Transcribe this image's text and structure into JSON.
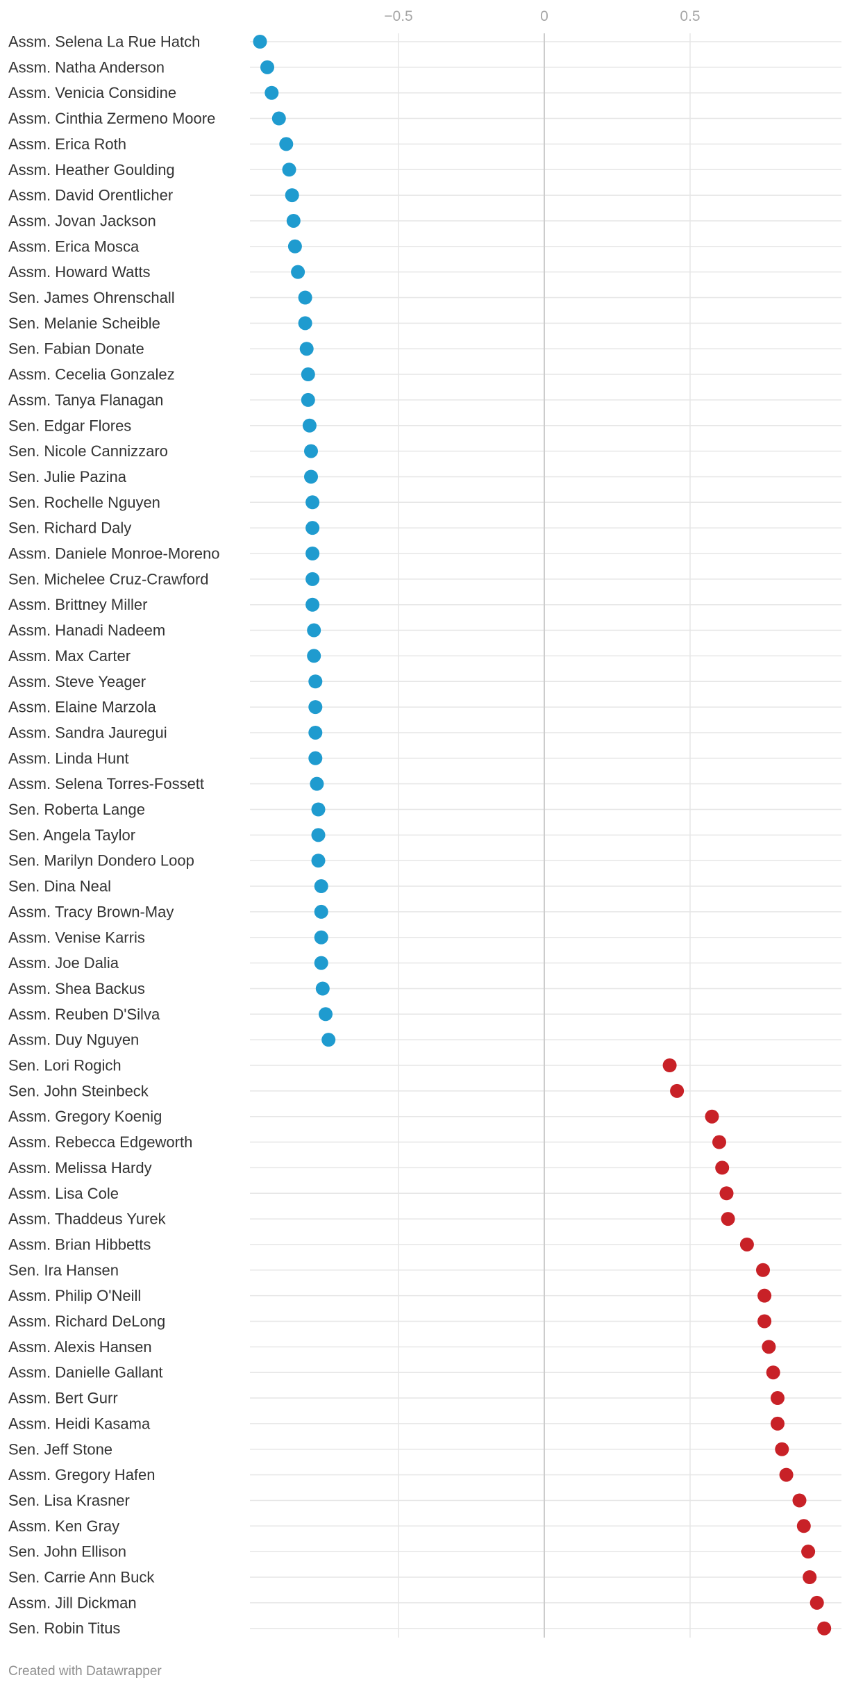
{
  "chart_data": {
    "type": "scatter",
    "title": "",
    "xlabel": "",
    "ylabel": "",
    "xlim": [
      -1.0,
      1.0
    ],
    "x_ticks": [
      {
        "value": -0.5,
        "label": "−0.5"
      },
      {
        "value": 0,
        "label": "0"
      },
      {
        "value": 0.5,
        "label": "0.5"
      }
    ],
    "grid": true,
    "legend": "none",
    "colors": {
      "democrat": "#1f9bcf",
      "republican": "#c82127",
      "gridline": "#e6e6e6",
      "zeroline": "#cccccc"
    },
    "legislators": [
      {
        "name": "Assm. Selena La Rue Hatch",
        "score": -0.975,
        "party": "democrat"
      },
      {
        "name": "Assm. Natha Anderson",
        "score": -0.95,
        "party": "democrat"
      },
      {
        "name": "Assm. Venicia Considine",
        "score": -0.935,
        "party": "democrat"
      },
      {
        "name": "Assm. Cinthia Zermeno Moore",
        "score": -0.91,
        "party": "democrat"
      },
      {
        "name": "Assm. Erica Roth",
        "score": -0.885,
        "party": "democrat"
      },
      {
        "name": "Assm. Heather Goulding",
        "score": -0.875,
        "party": "democrat"
      },
      {
        "name": "Assm. David Orentlicher",
        "score": -0.865,
        "party": "democrat"
      },
      {
        "name": "Assm. Jovan Jackson",
        "score": -0.86,
        "party": "democrat"
      },
      {
        "name": "Assm. Erica Mosca",
        "score": -0.855,
        "party": "democrat"
      },
      {
        "name": "Assm. Howard Watts",
        "score": -0.845,
        "party": "democrat"
      },
      {
        "name": "Sen. James Ohrenschall",
        "score": -0.82,
        "party": "democrat"
      },
      {
        "name": "Sen. Melanie Scheible",
        "score": -0.82,
        "party": "democrat"
      },
      {
        "name": "Sen. Fabian Donate",
        "score": -0.815,
        "party": "democrat"
      },
      {
        "name": "Assm. Cecelia Gonzalez",
        "score": -0.81,
        "party": "democrat"
      },
      {
        "name": "Assm. Tanya Flanagan",
        "score": -0.81,
        "party": "democrat"
      },
      {
        "name": "Sen. Edgar Flores",
        "score": -0.805,
        "party": "democrat"
      },
      {
        "name": "Sen. Nicole Cannizzaro",
        "score": -0.8,
        "party": "democrat"
      },
      {
        "name": "Sen. Julie Pazina",
        "score": -0.8,
        "party": "democrat"
      },
      {
        "name": "Sen. Rochelle Nguyen",
        "score": -0.795,
        "party": "democrat"
      },
      {
        "name": "Sen. Richard Daly",
        "score": -0.795,
        "party": "democrat"
      },
      {
        "name": "Assm. Daniele Monroe-Moreno",
        "score": -0.795,
        "party": "democrat"
      },
      {
        "name": "Sen. Michelee Cruz-Crawford",
        "score": -0.795,
        "party": "democrat"
      },
      {
        "name": "Assm. Brittney Miller",
        "score": -0.795,
        "party": "democrat"
      },
      {
        "name": "Assm. Hanadi Nadeem",
        "score": -0.79,
        "party": "democrat"
      },
      {
        "name": "Assm. Max Carter",
        "score": -0.79,
        "party": "democrat"
      },
      {
        "name": "Assm. Steve Yeager",
        "score": -0.785,
        "party": "democrat"
      },
      {
        "name": "Assm. Elaine Marzola",
        "score": -0.785,
        "party": "democrat"
      },
      {
        "name": "Assm. Sandra Jauregui",
        "score": -0.785,
        "party": "democrat"
      },
      {
        "name": "Assm. Linda Hunt",
        "score": -0.785,
        "party": "democrat"
      },
      {
        "name": "Assm. Selena Torres-Fossett",
        "score": -0.78,
        "party": "democrat"
      },
      {
        "name": "Sen. Roberta Lange",
        "score": -0.775,
        "party": "democrat"
      },
      {
        "name": "Sen. Angela Taylor",
        "score": -0.775,
        "party": "democrat"
      },
      {
        "name": "Sen. Marilyn Dondero Loop",
        "score": -0.775,
        "party": "democrat"
      },
      {
        "name": "Sen. Dina Neal",
        "score": -0.765,
        "party": "democrat"
      },
      {
        "name": "Assm. Tracy Brown-May",
        "score": -0.765,
        "party": "democrat"
      },
      {
        "name": "Assm. Venise Karris",
        "score": -0.765,
        "party": "democrat"
      },
      {
        "name": "Assm. Joe Dalia",
        "score": -0.765,
        "party": "democrat"
      },
      {
        "name": "Assm. Shea Backus",
        "score": -0.76,
        "party": "democrat"
      },
      {
        "name": "Assm. Reuben D'Silva",
        "score": -0.75,
        "party": "democrat"
      },
      {
        "name": "Assm. Duy Nguyen",
        "score": -0.74,
        "party": "democrat"
      },
      {
        "name": "Sen. Lori Rogich",
        "score": 0.43,
        "party": "republican"
      },
      {
        "name": "Sen. John Steinbeck",
        "score": 0.455,
        "party": "republican"
      },
      {
        "name": "Assm. Gregory Koenig",
        "score": 0.575,
        "party": "republican"
      },
      {
        "name": "Assm. Rebecca Edgeworth",
        "score": 0.6,
        "party": "republican"
      },
      {
        "name": "Assm. Melissa Hardy",
        "score": 0.61,
        "party": "republican"
      },
      {
        "name": "Assm. Lisa Cole",
        "score": 0.625,
        "party": "republican"
      },
      {
        "name": "Assm. Thaddeus Yurek",
        "score": 0.63,
        "party": "republican"
      },
      {
        "name": "Assm. Brian Hibbetts",
        "score": 0.695,
        "party": "republican"
      },
      {
        "name": "Sen. Ira Hansen",
        "score": 0.75,
        "party": "republican"
      },
      {
        "name": "Assm. Philip O'Neill",
        "score": 0.755,
        "party": "republican"
      },
      {
        "name": "Assm. Richard DeLong",
        "score": 0.755,
        "party": "republican"
      },
      {
        "name": "Assm. Alexis Hansen",
        "score": 0.77,
        "party": "republican"
      },
      {
        "name": "Assm. Danielle Gallant",
        "score": 0.785,
        "party": "republican"
      },
      {
        "name": "Assm. Bert Gurr",
        "score": 0.8,
        "party": "republican"
      },
      {
        "name": "Assm. Heidi Kasama",
        "score": 0.8,
        "party": "republican"
      },
      {
        "name": "Sen. Jeff Stone",
        "score": 0.815,
        "party": "republican"
      },
      {
        "name": "Assm. Gregory Hafen",
        "score": 0.83,
        "party": "republican"
      },
      {
        "name": "Sen. Lisa Krasner",
        "score": 0.875,
        "party": "republican"
      },
      {
        "name": "Assm. Ken Gray",
        "score": 0.89,
        "party": "republican"
      },
      {
        "name": "Sen. John Ellison",
        "score": 0.905,
        "party": "republican"
      },
      {
        "name": "Sen. Carrie Ann Buck",
        "score": 0.91,
        "party": "republican"
      },
      {
        "name": "Assm. Jill Dickman",
        "score": 0.935,
        "party": "republican"
      },
      {
        "name": "Sen. Robin Titus",
        "score": 0.96,
        "party": "republican"
      }
    ]
  },
  "footer": {
    "credit": "Created with Datawrapper"
  }
}
